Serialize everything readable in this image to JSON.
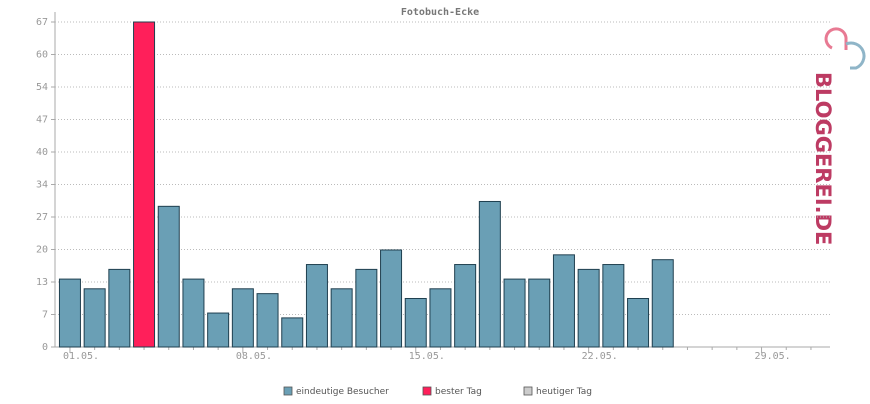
{
  "chart_data": {
    "type": "bar",
    "title": "Fotobuch-Ecke",
    "categories": [
      "01.05.",
      null,
      null,
      null,
      null,
      null,
      null,
      "08.05.",
      null,
      null,
      null,
      null,
      null,
      null,
      "15.05.",
      null,
      null,
      null,
      null,
      null,
      null,
      "22.05.",
      null,
      null,
      null,
      null,
      null,
      null,
      "29.05.",
      null,
      null
    ],
    "series": [
      {
        "name": "eindeutige Besucher",
        "color": "#6a9fb5",
        "values": [
          14,
          12,
          16,
          null,
          29,
          14,
          7,
          12,
          11,
          6,
          17,
          12,
          16,
          20,
          10,
          12,
          17,
          30,
          14,
          14,
          19,
          16,
          17,
          10,
          18,
          null,
          null,
          null,
          null,
          null,
          null
        ]
      },
      {
        "name": "bester Tag",
        "color": "#ff1f5a",
        "values": [
          null,
          null,
          null,
          67,
          null,
          null,
          null,
          null,
          null,
          null,
          null,
          null,
          null,
          null,
          null,
          null,
          null,
          null,
          null,
          null,
          null,
          null,
          null,
          null,
          null,
          null,
          null,
          null,
          null,
          null,
          null
        ]
      },
      {
        "name": "heutiger Tag",
        "color": "#cccccc",
        "values": [
          null,
          null,
          null,
          null,
          null,
          null,
          null,
          null,
          null,
          null,
          null,
          null,
          null,
          null,
          null,
          null,
          null,
          null,
          null,
          null,
          null,
          null,
          null,
          null,
          null,
          null,
          null,
          null,
          null,
          null,
          null
        ]
      }
    ],
    "ylim": [
      0,
      67
    ],
    "yticks": [
      0,
      {
        "value": 6.7,
        "label": "7"
      },
      {
        "value": 13.4,
        "label": "13"
      },
      {
        "value": 20.1,
        "label": "20"
      },
      {
        "value": 26.8,
        "label": "27"
      },
      {
        "value": 33.5,
        "label": "34"
      },
      {
        "value": 40.2,
        "label": "40"
      },
      {
        "value": 46.9,
        "label": "47"
      },
      {
        "value": 53.6,
        "label": "54"
      },
      {
        "value": 60.3,
        "label": "60"
      },
      67
    ],
    "grid": true,
    "logo": "BLOGGEREI.DE"
  }
}
